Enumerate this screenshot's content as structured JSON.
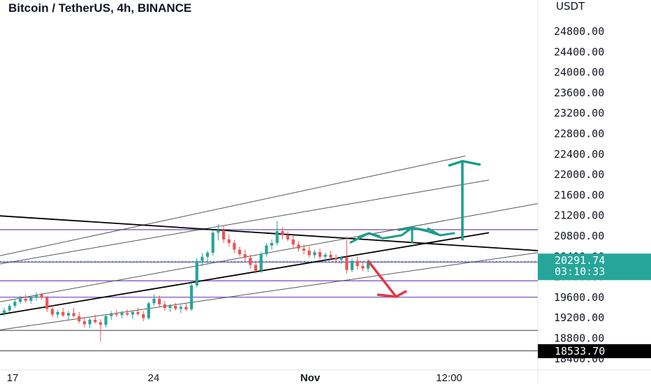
{
  "title": "Bitcoin / TetherUS, 4h, BINANCE",
  "price_unit": "USDT",
  "colors": {
    "up": "#26a69a",
    "down": "#ef5350",
    "level_line": "#7e57c2",
    "channel_line": "#555555",
    "trend_line": "#000000",
    "up_arrow": "#1a9e8a",
    "down_arrow": "#e53945",
    "price_badge": "#26a69a",
    "low_badge": "#000000"
  },
  "chart_data": {
    "type": "candlestick",
    "symbol": "BTC/USDT",
    "timeframe": "4h",
    "exchange": "BINANCE",
    "y_axis": {
      "ticks": [
        24800,
        24400,
        24000,
        23600,
        23200,
        22800,
        22400,
        22000,
        21600,
        21200,
        20800,
        20400,
        20000,
        19600,
        19200,
        18800,
        18400
      ],
      "tick_labels": [
        "24800.00",
        "24400.00",
        "24000.00",
        "23600.00",
        "23200.00",
        "22800.00",
        "22400.00",
        "22000.00",
        "21600.00",
        "21200.00",
        "20800.00",
        "20400.00",
        "20000.00",
        "19600.00",
        "19200.00",
        "18800.00",
        "18400.00"
      ],
      "range": [
        18280,
        25220
      ]
    },
    "x_axis": {
      "tick_labels": [
        "17",
        "24",
        "Nov",
        "12:00"
      ]
    },
    "current_price": {
      "label": "20291.74",
      "countdown": "03:10:33",
      "value": 20291.74
    },
    "low_marker": {
      "label": "18533.70",
      "value": 18533.7
    },
    "horizontal_levels": [
      20910,
      20275,
      19910,
      19590
    ],
    "horizontal_thin_lines": [
      18940,
      18540
    ],
    "candles": [
      [
        19280,
        19380,
        19220,
        19330
      ],
      [
        19330,
        19460,
        19300,
        19420
      ],
      [
        19420,
        19560,
        19380,
        19500
      ],
      [
        19500,
        19620,
        19450,
        19560
      ],
      [
        19560,
        19640,
        19480,
        19520
      ],
      [
        19520,
        19600,
        19460,
        19580
      ],
      [
        19580,
        19690,
        19520,
        19640
      ],
      [
        19640,
        19680,
        19540,
        19580
      ],
      [
        19580,
        19620,
        19300,
        19360
      ],
      [
        19360,
        19440,
        19200,
        19250
      ],
      [
        19250,
        19340,
        19180,
        19300
      ],
      [
        19300,
        19380,
        19200,
        19230
      ],
      [
        19230,
        19330,
        19150,
        19280
      ],
      [
        19280,
        19380,
        19200,
        19220
      ],
      [
        19220,
        19300,
        19080,
        19120
      ],
      [
        19120,
        19200,
        19000,
        19060
      ],
      [
        19060,
        19180,
        18980,
        19150
      ],
      [
        19150,
        19250,
        19080,
        19100
      ],
      [
        19100,
        19160,
        18720,
        19050
      ],
      [
        19050,
        19250,
        19000,
        19220
      ],
      [
        19220,
        19320,
        19150,
        19260
      ],
      [
        19260,
        19340,
        19200,
        19240
      ],
      [
        19240,
        19320,
        19180,
        19280
      ],
      [
        19280,
        19350,
        19220,
        19250
      ],
      [
        19250,
        19330,
        19170,
        19300
      ],
      [
        19300,
        19380,
        19230,
        19260
      ],
      [
        19260,
        19320,
        19120,
        19180
      ],
      [
        19180,
        19500,
        19150,
        19470
      ],
      [
        19470,
        19650,
        19420,
        19560
      ],
      [
        19560,
        19620,
        19400,
        19450
      ],
      [
        19450,
        19520,
        19320,
        19380
      ],
      [
        19380,
        19460,
        19300,
        19420
      ],
      [
        19420,
        19480,
        19330,
        19360
      ],
      [
        19360,
        19440,
        19280,
        19400
      ],
      [
        19400,
        19460,
        19320,
        19350
      ],
      [
        19350,
        19860,
        19320,
        19820
      ],
      [
        19820,
        20350,
        19780,
        20300
      ],
      [
        20300,
        20450,
        20200,
        20380
      ],
      [
        20380,
        20500,
        20250,
        20460
      ],
      [
        20460,
        20900,
        20400,
        20850
      ],
      [
        20850,
        21020,
        20700,
        20900
      ],
      [
        20900,
        20980,
        20650,
        20720
      ],
      [
        20720,
        20820,
        20580,
        20650
      ],
      [
        20650,
        20700,
        20450,
        20520
      ],
      [
        20520,
        20580,
        20380,
        20430
      ],
      [
        20430,
        20520,
        20300,
        20360
      ],
      [
        20360,
        20420,
        20150,
        20220
      ],
      [
        20220,
        20300,
        20050,
        20110
      ],
      [
        20110,
        20480,
        20060,
        20430
      ],
      [
        20430,
        20650,
        20380,
        20600
      ],
      [
        20600,
        20720,
        20520,
        20650
      ],
      [
        20650,
        21080,
        20600,
        20880
      ],
      [
        20880,
        20960,
        20720,
        20800
      ],
      [
        20800,
        20880,
        20680,
        20720
      ],
      [
        20720,
        20800,
        20560,
        20620
      ],
      [
        20620,
        20680,
        20480,
        20540
      ],
      [
        20540,
        20620,
        20420,
        20500
      ],
      [
        20500,
        20580,
        20360,
        20410
      ],
      [
        20410,
        20520,
        20350,
        20470
      ],
      [
        20470,
        20540,
        20330,
        20380
      ],
      [
        20380,
        20460,
        20280,
        20420
      ],
      [
        20420,
        20500,
        20330,
        20360
      ],
      [
        20360,
        20430,
        20250,
        20320
      ],
      [
        20320,
        20400,
        20240,
        20370
      ],
      [
        20370,
        20780,
        20050,
        20120
      ],
      [
        20120,
        20350,
        20080,
        20300
      ],
      [
        20300,
        20380,
        20130,
        20200
      ],
      [
        20200,
        20300,
        20100,
        20150
      ],
      [
        20150,
        20330,
        20080,
        20291.74
      ]
    ],
    "channel_lines": [
      {
        "points": [
          [
            0,
            20400
          ],
          [
            666,
            22350
          ]
        ]
      },
      {
        "points": [
          [
            0,
            20240
          ],
          [
            700,
            21880
          ]
        ]
      },
      {
        "points": [
          [
            0,
            19500
          ],
          [
            770,
            21420
          ]
        ]
      },
      {
        "points": [
          [
            0,
            18950
          ],
          [
            770,
            20460
          ]
        ]
      }
    ],
    "trend_lines": [
      {
        "points": [
          [
            0,
            21180
          ],
          [
            770,
            20500
          ]
        ]
      },
      {
        "points": [
          [
            0,
            19250
          ],
          [
            700,
            20850
          ]
        ]
      }
    ],
    "annotations": [
      {
        "type": "zigzag-up-arrow",
        "color": "up_arrow"
      },
      {
        "type": "big-up-arrow",
        "from": 20700,
        "to": 22250,
        "color": "up_arrow"
      },
      {
        "type": "down-arrow",
        "from": 20300,
        "to": 19600,
        "color": "down_arrow"
      }
    ]
  }
}
